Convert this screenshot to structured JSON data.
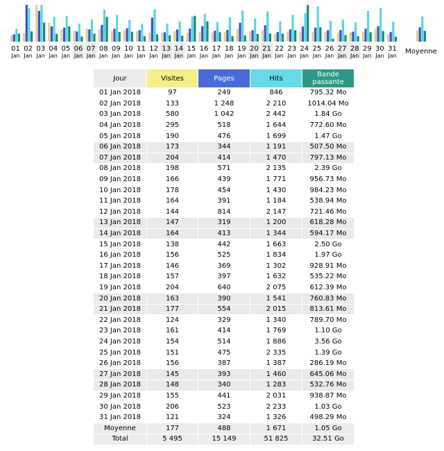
{
  "colors": {
    "visits": "#f3f089",
    "pages": "#4a6ad8",
    "hits": "#66dae8",
    "bandwidth": "#2a9a84",
    "visits_bar": "#dcd28a",
    "pages_bar": "#3a54c8",
    "hits_bar": "#59d6e2",
    "bandwidth_bar": "#1b8a76",
    "weekend": "#eaeaea"
  },
  "chart_data": {
    "type": "bar",
    "categories": [
      "01",
      "02",
      "03",
      "04",
      "05",
      "06",
      "07",
      "08",
      "09",
      "10",
      "11",
      "12",
      "13",
      "14",
      "15",
      "16",
      "17",
      "18",
      "19",
      "20",
      "21",
      "22",
      "23",
      "24",
      "25",
      "26",
      "27",
      "28",
      "29",
      "30",
      "31"
    ],
    "month_label": "Jan",
    "weekend_days": [
      "06",
      "07",
      "13",
      "14",
      "20",
      "21",
      "27",
      "28"
    ],
    "average_label": "Moyenne",
    "series": [
      {
        "name": "Visites",
        "values": [
          97,
          133,
          580,
          295,
          190,
          173,
          204,
          198,
          166,
          178,
          164,
          144,
          147,
          164,
          138,
          156,
          146,
          157,
          204,
          163,
          177,
          124,
          161,
          154,
          151,
          156,
          145,
          148,
          155,
          206,
          121
        ],
        "average": 177
      },
      {
        "name": "Pages",
        "values": [
          249,
          1248,
          1042,
          518,
          476,
          344,
          414,
          571,
          439,
          454,
          391,
          814,
          319,
          413,
          442,
          525,
          369,
          397,
          640,
          390,
          554,
          329,
          414,
          514,
          475,
          387,
          393,
          340,
          441,
          523,
          324
        ],
        "average": 488
      },
      {
        "name": "Hits",
        "values": [
          846,
          2210,
          2442,
          1644,
          1699,
          1191,
          1470,
          2135,
          1771,
          1430,
          1184,
          2147,
          1200,
          1344,
          1663,
          1834,
          1302,
          1632,
          2075,
          1541,
          2015,
          1340,
          1769,
          1886,
          2335,
          1387,
          1460,
          1283,
          2031,
          2233,
          1326
        ],
        "average": 1671
      },
      {
        "name": "Bande passante",
        "values": [
          795.32,
          1014.04,
          1884.16,
          772.6,
          1505.28,
          507.5,
          797.13,
          2447.36,
          956.73,
          984.23,
          538.94,
          721.46,
          618.28,
          594.17,
          2560,
          2017.28,
          928.91,
          535.22,
          612.39,
          760.83,
          813.61,
          789.7,
          1126.4,
          3645.44,
          1423.36,
          286.19,
          645.06,
          532.76,
          938.87,
          1054.72,
          498.29
        ],
        "unit": "Mo",
        "average": 1075.2
      }
    ]
  },
  "table": {
    "headers": [
      "Jour",
      "Visites",
      "Pages",
      "Hits",
      "Bande passante"
    ],
    "rows": [
      [
        "01 Jan 2018",
        "97",
        "249",
        "846",
        "795.32 Mo"
      ],
      [
        "02 Jan 2018",
        "133",
        "1 248",
        "2 210",
        "1014.04 Mo"
      ],
      [
        "03 Jan 2018",
        "580",
        "1 042",
        "2 442",
        "1.84 Go"
      ],
      [
        "04 Jan 2018",
        "295",
        "518",
        "1 644",
        "772.60 Mo"
      ],
      [
        "05 Jan 2018",
        "190",
        "476",
        "1 699",
        "1.47 Go"
      ],
      [
        "06 Jan 2018",
        "173",
        "344",
        "1 191",
        "507.50 Mo"
      ],
      [
        "07 Jan 2018",
        "204",
        "414",
        "1 470",
        "797.13 Mo"
      ],
      [
        "08 Jan 2018",
        "198",
        "571",
        "2 135",
        "2.39 Go"
      ],
      [
        "09 Jan 2018",
        "166",
        "439",
        "1 771",
        "956.73 Mo"
      ],
      [
        "10 Jan 2018",
        "178",
        "454",
        "1 430",
        "984.23 Mo"
      ],
      [
        "11 Jan 2018",
        "164",
        "391",
        "1 184",
        "538.94 Mo"
      ],
      [
        "12 Jan 2018",
        "144",
        "814",
        "2 147",
        "721.46 Mo"
      ],
      [
        "13 Jan 2018",
        "147",
        "319",
        "1 200",
        "618.28 Mo"
      ],
      [
        "14 Jan 2018",
        "164",
        "413",
        "1 344",
        "594.17 Mo"
      ],
      [
        "15 Jan 2018",
        "138",
        "442",
        "1 663",
        "2.50 Go"
      ],
      [
        "16 Jan 2018",
        "156",
        "525",
        "1 834",
        "1.97 Go"
      ],
      [
        "17 Jan 2018",
        "146",
        "369",
        "1 302",
        "928.91 Mo"
      ],
      [
        "18 Jan 2018",
        "157",
        "397",
        "1 632",
        "535.22 Mo"
      ],
      [
        "19 Jan 2018",
        "204",
        "640",
        "2 075",
        "612.39 Mo"
      ],
      [
        "20 Jan 2018",
        "163",
        "390",
        "1 541",
        "760.83 Mo"
      ],
      [
        "21 Jan 2018",
        "177",
        "554",
        "2 015",
        "813.61 Mo"
      ],
      [
        "22 Jan 2018",
        "124",
        "329",
        "1 340",
        "789.70 Mo"
      ],
      [
        "23 Jan 2018",
        "161",
        "414",
        "1 769",
        "1.10 Go"
      ],
      [
        "24 Jan 2018",
        "154",
        "514",
        "1 886",
        "3.56 Go"
      ],
      [
        "25 Jan 2018",
        "151",
        "475",
        "2 335",
        "1.39 Go"
      ],
      [
        "26 Jan 2018",
        "156",
        "387",
        "1 387",
        "286.19 Mo"
      ],
      [
        "27 Jan 2018",
        "145",
        "393",
        "1 460",
        "645.06 Mo"
      ],
      [
        "28 Jan 2018",
        "148",
        "340",
        "1 283",
        "532.76 Mo"
      ],
      [
        "29 Jan 2018",
        "155",
        "441",
        "2 031",
        "938.87 Mo"
      ],
      [
        "30 Jan 2018",
        "206",
        "523",
        "2 233",
        "1.03 Go"
      ],
      [
        "31 Jan 2018",
        "121",
        "324",
        "1 326",
        "498.29 Mo"
      ]
    ],
    "average_row": [
      "Moyenne",
      "177",
      "488",
      "1 671",
      "1.05 Go"
    ],
    "total_row": [
      "Total",
      "5 495",
      "15 149",
      "51 825",
      "32.51 Go"
    ]
  }
}
